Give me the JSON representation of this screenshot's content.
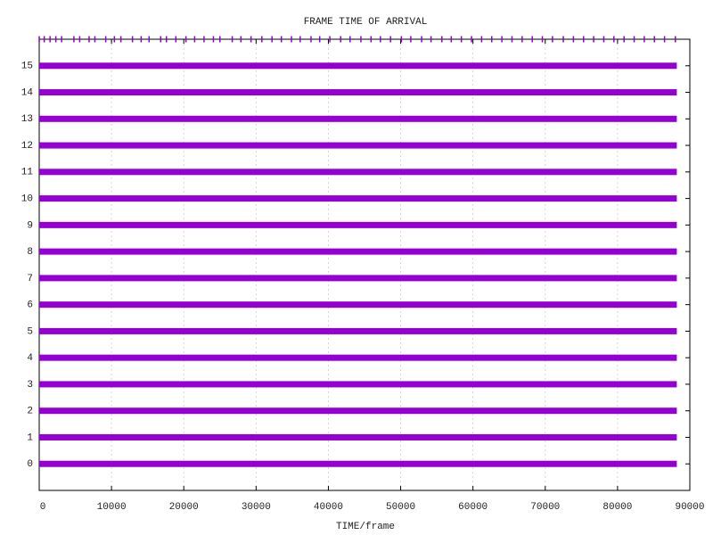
{
  "chart_data": {
    "type": "event-strip",
    "title": "FRAME TIME OF ARRIVAL",
    "x_label": "TIME/frame",
    "color": "#9400d3",
    "grid": "x",
    "xlim": [
      0,
      90000
    ],
    "xticks": [
      0,
      10000,
      20000,
      30000,
      40000,
      50000,
      60000,
      70000,
      80000,
      90000
    ],
    "ylim": [
      -1,
      16
    ],
    "yticks": [
      0,
      1,
      2,
      3,
      4,
      5,
      6,
      7,
      8,
      9,
      10,
      11,
      12,
      13,
      14,
      15
    ],
    "rows": [
      {
        "y": 0,
        "start": 0,
        "end": 88200
      },
      {
        "y": 1,
        "start": 0,
        "end": 88200
      },
      {
        "y": 2,
        "start": 0,
        "end": 88200
      },
      {
        "y": 3,
        "start": 0,
        "end": 88200
      },
      {
        "y": 4,
        "start": 0,
        "end": 88200
      },
      {
        "y": 5,
        "start": 0,
        "end": 88200
      },
      {
        "y": 6,
        "start": 0,
        "end": 88200
      },
      {
        "y": 7,
        "start": 0,
        "end": 88200
      },
      {
        "y": 8,
        "start": 0,
        "end": 88200
      },
      {
        "y": 9,
        "start": 0,
        "end": 88200
      },
      {
        "y": 10,
        "start": 0,
        "end": 88200
      },
      {
        "y": 11,
        "start": 0,
        "end": 88200
      },
      {
        "y": 12,
        "start": 0,
        "end": 88200
      },
      {
        "y": 13,
        "start": 0,
        "end": 88200
      },
      {
        "y": 14,
        "start": 0,
        "end": 88200
      },
      {
        "y": 15,
        "start": 0,
        "end": 88200
      }
    ],
    "events": {
      "y": 16,
      "x": [
        0,
        700,
        1500,
        2300,
        3100,
        4800,
        5600,
        6900,
        7700,
        9200,
        10400,
        11300,
        12900,
        14100,
        15200,
        16800,
        17600,
        18900,
        20300,
        21500,
        22800,
        24100,
        25000,
        26700,
        27900,
        29300,
        30800,
        32200,
        33500,
        34900,
        36100,
        37600,
        38800,
        40200,
        41700,
        43000,
        44500,
        45900,
        47200,
        48600,
        50100,
        51400,
        52900,
        54200,
        55700,
        57000,
        58400,
        59800,
        61200,
        62600,
        64000,
        65400,
        66800,
        68200,
        69600,
        71000,
        72500,
        73900,
        75300,
        76700,
        78100,
        79500,
        80900,
        82300,
        83700,
        85100,
        86500,
        88000
      ]
    }
  }
}
